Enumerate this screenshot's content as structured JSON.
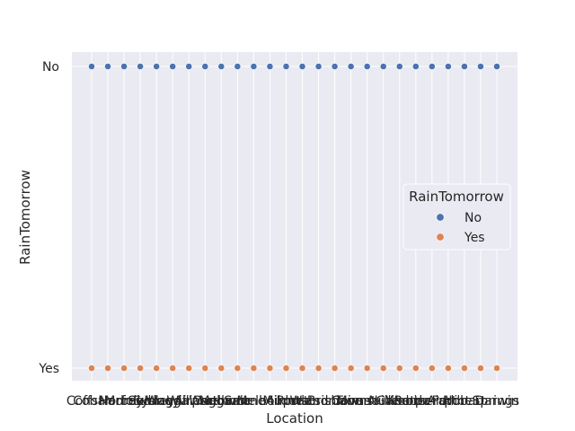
{
  "chart_data": {
    "type": "scatter",
    "title": "",
    "xlabel": "Location",
    "ylabel": "RainTomorrow",
    "categories": [
      "Cobar",
      "CoffsHarbour",
      "Moree",
      "NorfolkIsland",
      "Sydney",
      "SydneyAirport",
      "WaggaWagga",
      "Williamtown",
      "Canberra",
      "Sale",
      "MelbourneAirport",
      "Melbourne",
      "Mildura",
      "Portland",
      "Watsonia",
      "Brisbane",
      "Cairns",
      "Townsville",
      "MountGambier",
      "Nuriootpa",
      "Woomera",
      "PerthAirport",
      "Perth",
      "Hobart",
      "AliceSprings",
      "Darwin"
    ],
    "y_categories": [
      "No",
      "Yes"
    ],
    "series": [
      {
        "name": "No",
        "y": "No",
        "color": "#4c72b0"
      },
      {
        "name": "Yes",
        "y": "Yes",
        "color": "#dd8452"
      }
    ],
    "legend": {
      "title": "RainTomorrow",
      "placement": "center-right",
      "entries": [
        "No",
        "Yes"
      ]
    },
    "grid": true,
    "background_color": "#eaeaf2"
  }
}
